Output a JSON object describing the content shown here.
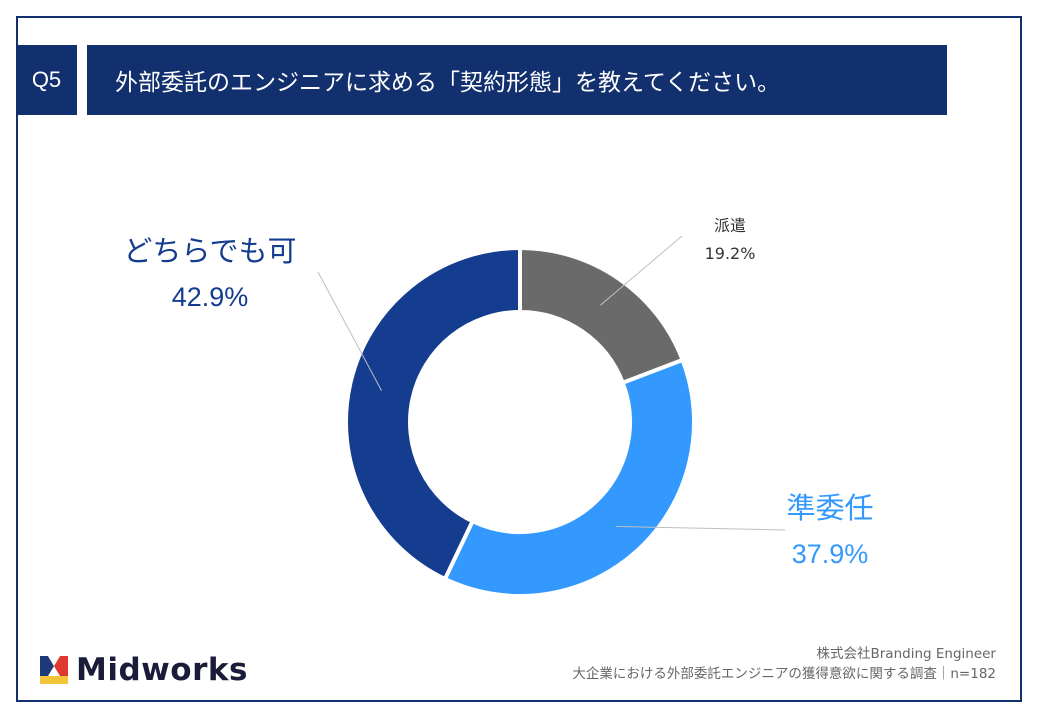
{
  "header": {
    "q_label": "Q5",
    "title": "外部委託のエンジニアに求める「契約形態」を教えてください。"
  },
  "chart_data": {
    "type": "pie",
    "donut": true,
    "title": "外部委託のエンジニアに求める「契約形態」を教えてください。",
    "slices": [
      {
        "label": "派遣",
        "value": 19.2,
        "display": "19.2%",
        "color": "#6a6a6a"
      },
      {
        "label": "準委任",
        "value": 37.9,
        "display": "37.9%",
        "color": "#3399ff"
      },
      {
        "label": "どちらでも可",
        "value": 42.9,
        "display": "42.9%",
        "color": "#143c8f"
      }
    ]
  },
  "brand": {
    "logo_text": "Midworks"
  },
  "footer": {
    "line1": "株式会社Branding Engineer",
    "line2": "大企業における外部委託エンジニアの獲得意欲に関する調査｜n=182"
  }
}
